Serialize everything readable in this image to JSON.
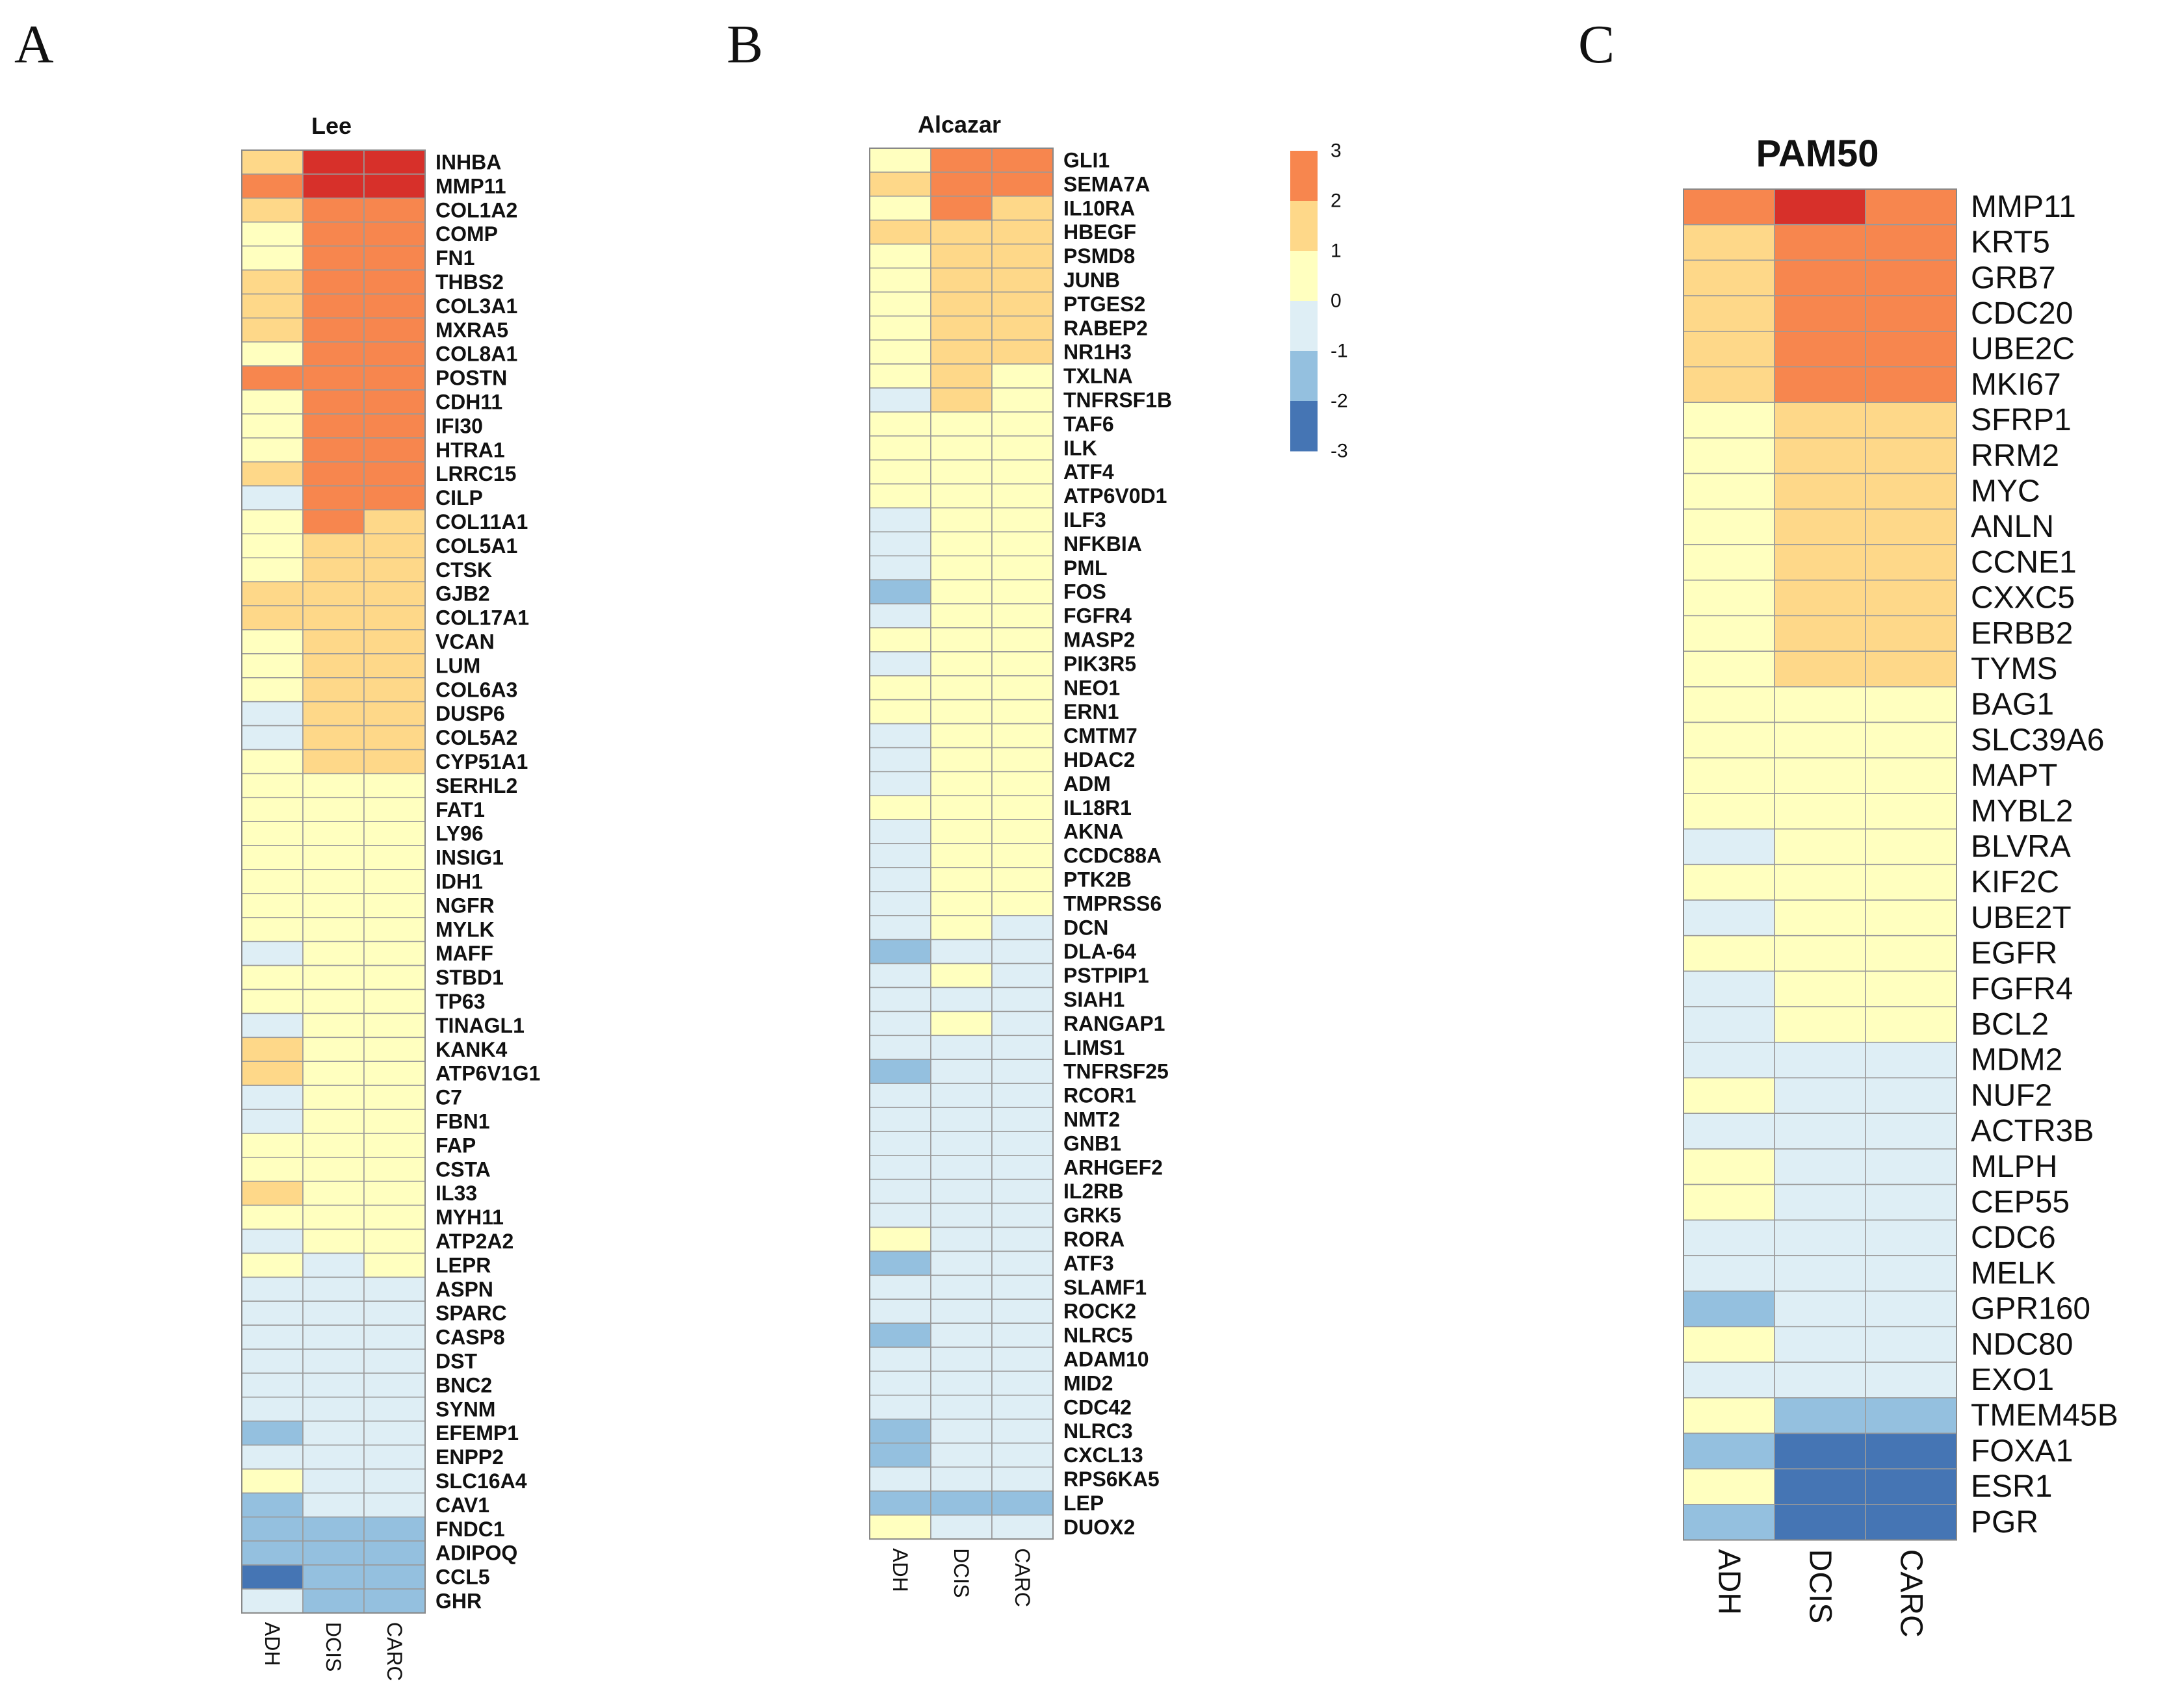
{
  "panel_letters": [
    "A",
    "B",
    "C"
  ],
  "color_scale": {
    "low": "#4575b4",
    "mid": "#ffffbf",
    "high": "#d73027",
    "levels": [
      {
        "value": 3,
        "color": "#f7864e"
      },
      {
        "value": 2,
        "color": "#fed889"
      },
      {
        "value": 1,
        "color": "#ffffbf"
      },
      {
        "value": 0,
        "color": "#deeef5"
      },
      {
        "value": -1,
        "color": "#94c0df"
      },
      {
        "value": -2,
        "color": "#4575b4"
      }
    ]
  },
  "legend_ticks": [
    "3",
    "2",
    "1",
    "0",
    "-1",
    "-2",
    "-3"
  ],
  "chart_data": [
    {
      "type": "heatmap",
      "panel": "A",
      "title": "Lee",
      "columns": [
        "ADH",
        "DCIS",
        "CARC"
      ],
      "genes": [
        "INHBA",
        "MMP11",
        "COL1A2",
        "COMP",
        "FN1",
        "THBS2",
        "COL3A1",
        "MXRA5",
        "COL8A1",
        "POSTN",
        "CDH11",
        "IFI30",
        "HTRA1",
        "LRRC15",
        "CILP",
        "COL11A1",
        "COL5A1",
        "CTSK",
        "GJB2",
        "COL17A1",
        "VCAN",
        "LUM",
        "COL6A3",
        "DUSP6",
        "COL5A2",
        "CYP51A1",
        "SERHL2",
        "FAT1",
        "LY96",
        "INSIG1",
        "IDH1",
        "NGFR",
        "MYLK",
        "MAFF",
        "STBD1",
        "TP63",
        "TINAGL1",
        "KANK4",
        "ATP6V1G1",
        "C7",
        "FBN1",
        "FAP",
        "CSTA",
        "IL33",
        "MYH11",
        "ATP2A2",
        "LEPR",
        "ASPN",
        "SPARC",
        "CASP8",
        "DST",
        "BNC2",
        "SYNM",
        "EFEMP1",
        "ENPP2",
        "SLC16A4",
        "CAV1",
        "FNDC1",
        "ADIPOQ",
        "CCL5",
        "GHR"
      ],
      "values": [
        [
          2,
          4,
          4
        ],
        [
          3,
          4,
          4
        ],
        [
          2,
          3,
          3
        ],
        [
          1,
          3,
          3
        ],
        [
          1,
          3,
          3
        ],
        [
          2,
          3,
          3
        ],
        [
          2,
          3,
          3
        ],
        [
          2,
          3,
          3
        ],
        [
          1,
          3,
          3
        ],
        [
          3,
          3,
          3
        ],
        [
          1,
          3,
          3
        ],
        [
          1,
          3,
          3
        ],
        [
          1,
          3,
          3
        ],
        [
          2,
          3,
          3
        ],
        [
          0,
          3,
          3
        ],
        [
          1,
          3,
          2
        ],
        [
          1,
          2,
          2
        ],
        [
          1,
          2,
          2
        ],
        [
          2,
          2,
          2
        ],
        [
          2,
          2,
          2
        ],
        [
          1,
          2,
          2
        ],
        [
          1,
          2,
          2
        ],
        [
          1,
          2,
          2
        ],
        [
          0,
          2,
          2
        ],
        [
          0,
          2,
          2
        ],
        [
          1,
          2,
          2
        ],
        [
          1,
          1,
          1
        ],
        [
          1,
          1,
          1
        ],
        [
          1,
          1,
          1
        ],
        [
          1,
          1,
          1
        ],
        [
          1,
          1,
          1
        ],
        [
          1,
          1,
          1
        ],
        [
          1,
          1,
          1
        ],
        [
          0,
          1,
          1
        ],
        [
          1,
          1,
          1
        ],
        [
          1,
          1,
          1
        ],
        [
          0,
          1,
          1
        ],
        [
          2,
          1,
          1
        ],
        [
          2,
          1,
          1
        ],
        [
          0,
          1,
          1
        ],
        [
          0,
          1,
          1
        ],
        [
          1,
          1,
          1
        ],
        [
          1,
          1,
          1
        ],
        [
          2,
          1,
          1
        ],
        [
          1,
          1,
          1
        ],
        [
          0,
          1,
          1
        ],
        [
          1,
          0,
          1
        ],
        [
          0,
          0,
          0
        ],
        [
          0,
          0,
          0
        ],
        [
          0,
          0,
          0
        ],
        [
          0,
          0,
          0
        ],
        [
          0,
          0,
          0
        ],
        [
          0,
          0,
          0
        ],
        [
          -1,
          0,
          0
        ],
        [
          0,
          0,
          0
        ],
        [
          1,
          0,
          0
        ],
        [
          -1,
          0,
          0
        ],
        [
          -1,
          -1,
          -1
        ],
        [
          -1,
          -1,
          -1
        ],
        [
          -2,
          -1,
          -1
        ],
        [
          0,
          -1,
          -1
        ]
      ]
    },
    {
      "type": "heatmap",
      "panel": "B",
      "title": "Alcazar",
      "columns": [
        "ADH",
        "DCIS",
        "CARC"
      ],
      "genes": [
        "GLI1",
        "SEMA7A",
        "IL10RA",
        "HBEGF",
        "PSMD8",
        "JUNB",
        "PTGES2",
        "RABEP2",
        "NR1H3",
        "TXLNA",
        "TNFRSF1B",
        "TAF6",
        "ILK",
        "ATF4",
        "ATP6V0D1",
        "ILF3",
        "NFKBIA",
        "PML",
        "FOS",
        "FGFR4",
        "MASP2",
        "PIK3R5",
        "NEO1",
        "ERN1",
        "CMTM7",
        "HDAC2",
        "ADM",
        "IL18R1",
        "AKNA",
        "CCDC88A",
        "PTK2B",
        "TMPRSS6",
        "DCN",
        "DLA-64",
        "PSTPIP1",
        "SIAH1",
        "RANGAP1",
        "LIMS1",
        "TNFRSF25",
        "RCOR1",
        "NMT2",
        "GNB1",
        "ARHGEF2",
        "IL2RB",
        "GRK5",
        "RORA",
        "ATF3",
        "SLAMF1",
        "ROCK2",
        "NLRC5",
        "ADAM10",
        "MID2",
        "CDC42",
        "NLRC3",
        "CXCL13",
        "RPS6KA5",
        "LEP",
        "DUOX2"
      ],
      "values": [
        [
          1,
          3,
          3
        ],
        [
          2,
          3,
          3
        ],
        [
          1,
          3,
          2
        ],
        [
          2,
          2,
          2
        ],
        [
          1,
          2,
          2
        ],
        [
          1,
          2,
          2
        ],
        [
          1,
          2,
          2
        ],
        [
          1,
          2,
          2
        ],
        [
          1,
          2,
          2
        ],
        [
          1,
          2,
          1
        ],
        [
          0,
          2,
          1
        ],
        [
          1,
          1,
          1
        ],
        [
          1,
          1,
          1
        ],
        [
          1,
          1,
          1
        ],
        [
          1,
          1,
          1
        ],
        [
          0,
          1,
          1
        ],
        [
          0,
          1,
          1
        ],
        [
          0,
          1,
          1
        ],
        [
          -1,
          1,
          1
        ],
        [
          0,
          1,
          1
        ],
        [
          1,
          1,
          1
        ],
        [
          0,
          1,
          1
        ],
        [
          1,
          1,
          1
        ],
        [
          1,
          1,
          1
        ],
        [
          0,
          1,
          1
        ],
        [
          0,
          1,
          1
        ],
        [
          0,
          1,
          1
        ],
        [
          1,
          1,
          1
        ],
        [
          0,
          1,
          1
        ],
        [
          0,
          1,
          1
        ],
        [
          0,
          1,
          1
        ],
        [
          0,
          1,
          1
        ],
        [
          0,
          1,
          0
        ],
        [
          -1,
          0,
          0
        ],
        [
          0,
          1,
          0
        ],
        [
          0,
          0,
          0
        ],
        [
          0,
          1,
          0
        ],
        [
          0,
          0,
          0
        ],
        [
          -1,
          0,
          0
        ],
        [
          0,
          0,
          0
        ],
        [
          0,
          0,
          0
        ],
        [
          0,
          0,
          0
        ],
        [
          0,
          0,
          0
        ],
        [
          0,
          0,
          0
        ],
        [
          0,
          0,
          0
        ],
        [
          1,
          0,
          0
        ],
        [
          -1,
          0,
          0
        ],
        [
          0,
          0,
          0
        ],
        [
          0,
          0,
          0
        ],
        [
          -1,
          0,
          0
        ],
        [
          0,
          0,
          0
        ],
        [
          0,
          0,
          0
        ],
        [
          0,
          0,
          0
        ],
        [
          -1,
          0,
          0
        ],
        [
          -1,
          0,
          0
        ],
        [
          0,
          0,
          0
        ],
        [
          -1,
          -1,
          -1
        ],
        [
          1,
          0,
          0
        ]
      ]
    },
    {
      "type": "heatmap",
      "panel": "C",
      "title": "PAM50",
      "columns": [
        "ADH",
        "DCIS",
        "CARC"
      ],
      "genes": [
        "MMP11",
        "KRT5",
        "GRB7",
        "CDC20",
        "UBE2C",
        "MKI67",
        "SFRP1",
        "RRM2",
        "MYC",
        "ANLN",
        "CCNE1",
        "CXXC5",
        "ERBB2",
        "TYMS",
        "BAG1",
        "SLC39A6",
        "MAPT",
        "MYBL2",
        "BLVRA",
        "KIF2C",
        "UBE2T",
        "EGFR",
        "FGFR4",
        "BCL2",
        "MDM2",
        "NUF2",
        "ACTR3B",
        "MLPH",
        "CEP55",
        "CDC6",
        "MELK",
        "GPR160",
        "NDC80",
        "EXO1",
        "TMEM45B",
        "FOXA1",
        "ESR1",
        "PGR"
      ],
      "values": [
        [
          3,
          4,
          3
        ],
        [
          2,
          3,
          3
        ],
        [
          2,
          3,
          3
        ],
        [
          2,
          3,
          3
        ],
        [
          2,
          3,
          3
        ],
        [
          2,
          3,
          3
        ],
        [
          1,
          2,
          2
        ],
        [
          1,
          2,
          2
        ],
        [
          1,
          2,
          2
        ],
        [
          1,
          2,
          2
        ],
        [
          1,
          2,
          2
        ],
        [
          1,
          2,
          2
        ],
        [
          1,
          2,
          2
        ],
        [
          1,
          2,
          2
        ],
        [
          1,
          1,
          1
        ],
        [
          1,
          1,
          1
        ],
        [
          1,
          1,
          1
        ],
        [
          1,
          1,
          1
        ],
        [
          0,
          1,
          1
        ],
        [
          1,
          1,
          1
        ],
        [
          0,
          1,
          1
        ],
        [
          1,
          1,
          1
        ],
        [
          0,
          1,
          1
        ],
        [
          0,
          1,
          1
        ],
        [
          0,
          0,
          0
        ],
        [
          1,
          0,
          0
        ],
        [
          0,
          0,
          0
        ],
        [
          1,
          0,
          0
        ],
        [
          1,
          0,
          0
        ],
        [
          0,
          0,
          0
        ],
        [
          0,
          0,
          0
        ],
        [
          -1,
          0,
          0
        ],
        [
          1,
          0,
          0
        ],
        [
          0,
          0,
          0
        ],
        [
          1,
          -1,
          -1
        ],
        [
          -1,
          -2,
          -2
        ],
        [
          1,
          -2,
          -2
        ],
        [
          -1,
          -2,
          -2
        ]
      ]
    }
  ]
}
